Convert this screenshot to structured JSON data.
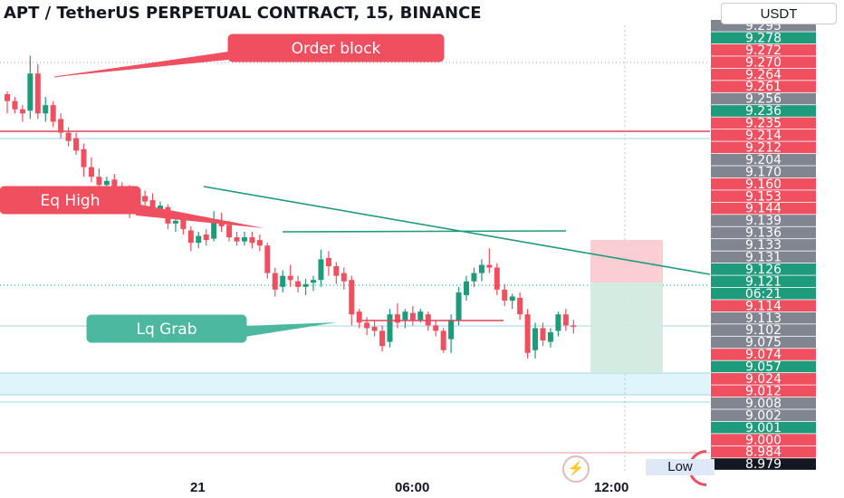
{
  "header": {
    "title": "APT / TetherUS PERPETUAL CONTRACT, 15, BINANCE",
    "currency_button": "USDT"
  },
  "chart_data": {
    "type": "candlestick",
    "symbol": "APT / TetherUS",
    "timeframe": "15",
    "exchange": "BINANCE",
    "ylim": [
      8.975,
      9.3
    ],
    "x_ticks": [
      "21",
      "06:00",
      "12:00"
    ],
    "candles": [
      {
        "o": 9.25,
        "h": 9.252,
        "l": 9.236,
        "c": 9.245
      },
      {
        "o": 9.245,
        "h": 9.248,
        "l": 9.236,
        "c": 9.239
      },
      {
        "o": 9.239,
        "h": 9.242,
        "l": 9.23,
        "c": 9.236
      },
      {
        "o": 9.238,
        "h": 9.278,
        "l": 9.232,
        "c": 9.265
      },
      {
        "o": 9.265,
        "h": 9.272,
        "l": 9.232,
        "c": 9.236
      },
      {
        "o": 9.236,
        "h": 9.248,
        "l": 9.23,
        "c": 9.242
      },
      {
        "o": 9.242,
        "h": 9.245,
        "l": 9.226,
        "c": 9.23
      },
      {
        "o": 9.232,
        "h": 9.236,
        "l": 9.218,
        "c": 9.222
      },
      {
        "o": 9.222,
        "h": 9.226,
        "l": 9.212,
        "c": 9.216
      },
      {
        "o": 9.218,
        "h": 9.222,
        "l": 9.206,
        "c": 9.209
      },
      {
        "o": 9.21,
        "h": 9.214,
        "l": 9.19,
        "c": 9.197
      },
      {
        "o": 9.197,
        "h": 9.204,
        "l": 9.186,
        "c": 9.19
      },
      {
        "o": 9.19,
        "h": 9.196,
        "l": 9.18,
        "c": 9.184
      },
      {
        "o": 9.184,
        "h": 9.19,
        "l": 9.178,
        "c": 9.187
      },
      {
        "o": 9.188,
        "h": 9.192,
        "l": 9.177,
        "c": 9.18
      },
      {
        "o": 9.182,
        "h": 9.186,
        "l": 9.175,
        "c": 9.178
      },
      {
        "o": 9.18,
        "h": 9.184,
        "l": 9.16,
        "c": 9.165
      },
      {
        "o": 9.165,
        "h": 9.178,
        "l": 9.162,
        "c": 9.175
      },
      {
        "o": 9.176,
        "h": 9.18,
        "l": 9.168,
        "c": 9.172
      },
      {
        "o": 9.173,
        "h": 9.178,
        "l": 9.162,
        "c": 9.166
      },
      {
        "o": 9.166,
        "h": 9.172,
        "l": 9.162,
        "c": 9.169
      },
      {
        "o": 9.168,
        "h": 9.17,
        "l": 9.152,
        "c": 9.156
      },
      {
        "o": 9.156,
        "h": 9.162,
        "l": 9.15,
        "c": 9.158
      },
      {
        "o": 9.16,
        "h": 9.164,
        "l": 9.148,
        "c": 9.152
      },
      {
        "o": 9.151,
        "h": 9.154,
        "l": 9.136,
        "c": 9.142
      },
      {
        "o": 9.142,
        "h": 9.15,
        "l": 9.138,
        "c": 9.147
      },
      {
        "o": 9.148,
        "h": 9.152,
        "l": 9.14,
        "c": 9.144
      },
      {
        "o": 9.145,
        "h": 9.165,
        "l": 9.143,
        "c": 9.158
      },
      {
        "o": 9.158,
        "h": 9.164,
        "l": 9.15,
        "c": 9.154
      },
      {
        "o": 9.155,
        "h": 9.158,
        "l": 9.143,
        "c": 9.146
      },
      {
        "o": 9.146,
        "h": 9.15,
        "l": 9.14,
        "c": 9.143
      },
      {
        "o": 9.143,
        "h": 9.15,
        "l": 9.14,
        "c": 9.146
      },
      {
        "o": 9.146,
        "h": 9.15,
        "l": 9.138,
        "c": 9.142
      },
      {
        "o": 9.144,
        "h": 9.148,
        "l": 9.136,
        "c": 9.14
      },
      {
        "o": 9.14,
        "h": 9.142,
        "l": 9.116,
        "c": 9.12
      },
      {
        "o": 9.12,
        "h": 9.124,
        "l": 9.103,
        "c": 9.108
      },
      {
        "o": 9.11,
        "h": 9.122,
        "l": 9.106,
        "c": 9.118
      },
      {
        "o": 9.118,
        "h": 9.126,
        "l": 9.11,
        "c": 9.115
      },
      {
        "o": 9.114,
        "h": 9.118,
        "l": 9.106,
        "c": 9.11
      },
      {
        "o": 9.11,
        "h": 9.116,
        "l": 9.104,
        "c": 9.112
      },
      {
        "o": 9.113,
        "h": 9.118,
        "l": 9.107,
        "c": 9.115
      },
      {
        "o": 9.115,
        "h": 9.137,
        "l": 9.11,
        "c": 9.13
      },
      {
        "o": 9.131,
        "h": 9.136,
        "l": 9.118,
        "c": 9.125
      },
      {
        "o": 9.125,
        "h": 9.128,
        "l": 9.112,
        "c": 9.118
      },
      {
        "o": 9.12,
        "h": 9.124,
        "l": 9.108,
        "c": 9.114
      },
      {
        "o": 9.115,
        "h": 9.118,
        "l": 9.082,
        "c": 9.09
      },
      {
        "o": 9.092,
        "h": 9.094,
        "l": 9.08,
        "c": 9.084
      },
      {
        "o": 9.084,
        "h": 9.088,
        "l": 9.075,
        "c": 9.08
      },
      {
        "o": 9.081,
        "h": 9.086,
        "l": 9.074,
        "c": 9.078
      },
      {
        "o": 9.078,
        "h": 9.082,
        "l": 9.063,
        "c": 9.067
      },
      {
        "o": 9.07,
        "h": 9.094,
        "l": 9.066,
        "c": 9.09
      },
      {
        "o": 9.09,
        "h": 9.098,
        "l": 9.08,
        "c": 9.084
      },
      {
        "o": 9.086,
        "h": 9.094,
        "l": 9.08,
        "c": 9.092
      },
      {
        "o": 9.091,
        "h": 9.096,
        "l": 9.082,
        "c": 9.086
      },
      {
        "o": 9.086,
        "h": 9.094,
        "l": 9.084,
        "c": 9.092
      },
      {
        "o": 9.09,
        "h": 9.092,
        "l": 9.078,
        "c": 9.082
      },
      {
        "o": 9.082,
        "h": 9.086,
        "l": 9.074,
        "c": 9.078
      },
      {
        "o": 9.078,
        "h": 9.08,
        "l": 9.062,
        "c": 9.064
      },
      {
        "o": 9.072,
        "h": 9.09,
        "l": 9.062,
        "c": 9.086
      },
      {
        "o": 9.086,
        "h": 9.11,
        "l": 9.082,
        "c": 9.106
      },
      {
        "o": 9.104,
        "h": 9.118,
        "l": 9.1,
        "c": 9.114
      },
      {
        "o": 9.114,
        "h": 9.124,
        "l": 9.11,
        "c": 9.12
      },
      {
        "o": 9.12,
        "h": 9.13,
        "l": 9.114,
        "c": 9.126
      },
      {
        "o": 9.126,
        "h": 9.138,
        "l": 9.12,
        "c": 9.124
      },
      {
        "o": 9.124,
        "h": 9.127,
        "l": 9.104,
        "c": 9.108
      },
      {
        "o": 9.108,
        "h": 9.112,
        "l": 9.096,
        "c": 9.1
      },
      {
        "o": 9.1,
        "h": 9.105,
        "l": 9.094,
        "c": 9.103
      },
      {
        "o": 9.102,
        "h": 9.106,
        "l": 9.086,
        "c": 9.09
      },
      {
        "o": 9.09,
        "h": 9.094,
        "l": 9.058,
        "c": 9.062
      },
      {
        "o": 9.064,
        "h": 9.084,
        "l": 9.058,
        "c": 9.08
      },
      {
        "o": 9.08,
        "h": 9.084,
        "l": 9.067,
        "c": 9.071
      },
      {
        "o": 9.07,
        "h": 9.08,
        "l": 9.066,
        "c": 9.077
      },
      {
        "o": 9.078,
        "h": 9.092,
        "l": 9.074,
        "c": 9.09
      },
      {
        "o": 9.09,
        "h": 9.094,
        "l": 9.078,
        "c": 9.082
      },
      {
        "o": 9.082,
        "h": 9.086,
        "l": 9.076,
        "c": 9.081
      }
    ],
    "annotations": [
      {
        "text": "Order block",
        "color": "#ef4f5f"
      },
      {
        "text": "Eq High",
        "color": "#ef4f5f"
      },
      {
        "text": "Lq Grab",
        "color": "#4db8a0"
      }
    ],
    "price_labels": [
      {
        "v": "9.295",
        "bg": "#808590"
      },
      {
        "v": "9.278",
        "bg": "#1e9b7a"
      },
      {
        "v": "9.272",
        "bg": "#ef4f5f"
      },
      {
        "v": "9.270",
        "bg": "#ef4f5f"
      },
      {
        "v": "9.264",
        "bg": "#ef4f5f"
      },
      {
        "v": "9.261",
        "bg": "#ef4f5f"
      },
      {
        "v": "9.256",
        "bg": "#808590"
      },
      {
        "v": "9.236",
        "bg": "#1e9b7a"
      },
      {
        "v": "9.235",
        "bg": "#ef4f5f"
      },
      {
        "v": "9.214",
        "bg": "#ef4f5f"
      },
      {
        "v": "9.212",
        "bg": "#ef4f5f"
      },
      {
        "v": "9.204",
        "bg": "#808590"
      },
      {
        "v": "9.170",
        "bg": "#808590"
      },
      {
        "v": "9.160",
        "bg": "#ef4f5f"
      },
      {
        "v": "9.153",
        "bg": "#ef4f5f"
      },
      {
        "v": "9.144",
        "bg": "#ef4f5f"
      },
      {
        "v": "9.139",
        "bg": "#808590"
      },
      {
        "v": "9.136",
        "bg": "#808590"
      },
      {
        "v": "9.133",
        "bg": "#808590"
      },
      {
        "v": "9.131",
        "bg": "#808590"
      },
      {
        "v": "9.126",
        "bg": "#1e9b7a"
      },
      {
        "v": "9.121",
        "bg": "#1e9b7a"
      },
      {
        "v": "06:21",
        "bg": "#1e9b7a"
      },
      {
        "v": "9.114",
        "bg": "#ef4f5f"
      },
      {
        "v": "9.113",
        "bg": "#808590"
      },
      {
        "v": "9.102",
        "bg": "#808590"
      },
      {
        "v": "9.075",
        "bg": "#808590"
      },
      {
        "v": "9.074",
        "bg": "#ef4f5f"
      },
      {
        "v": "9.057",
        "bg": "#1e9b7a"
      },
      {
        "v": "9.024",
        "bg": "#ef4f5f"
      },
      {
        "v": "9.012",
        "bg": "#ef4f5f"
      },
      {
        "v": "9.008",
        "bg": "#808590"
      },
      {
        "v": "9.002",
        "bg": "#808590"
      },
      {
        "v": "9.001",
        "bg": "#1e9b7a"
      },
      {
        "v": "9.000",
        "bg": "#ef4f5f"
      },
      {
        "v": "8.984",
        "bg": "#ef4f5f"
      },
      {
        "v": "8.979",
        "bg": "#131722"
      }
    ],
    "low_label": "Low",
    "current_price": 9.121,
    "countdown": "06:21",
    "colors": {
      "up": "#1e9b7a",
      "down": "#ef4f5f",
      "trend": "#1e9b7a",
      "level": "#e0425a"
    }
  }
}
